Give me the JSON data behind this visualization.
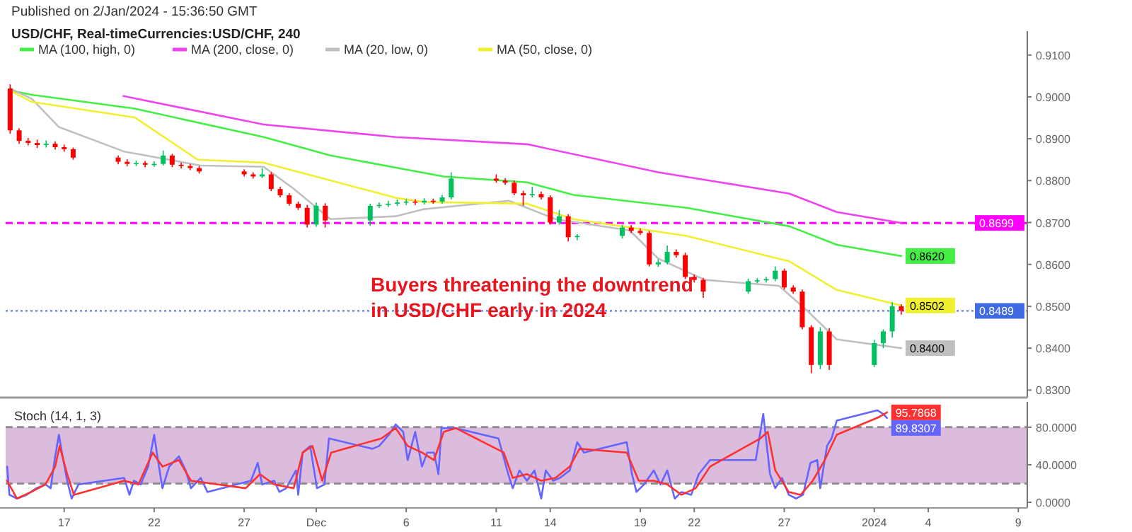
{
  "chart_data": [
    {
      "type": "candlestick",
      "title": "Published on 2/Jan/2024 - 15:36:50 GMT",
      "subtitle": "USD/CHF, Real-timeCurrencies:USD/CHF, 240",
      "annotations": [
        "Buyers threatening the downtrend\nin USD/CHF early in 2024"
      ],
      "x": [
        "2023-11-14T00:00",
        "2023-11-14T12:00",
        "2023-11-15T00:00",
        "2023-11-15T12:00",
        "2023-11-16T00:00",
        "2023-11-16T12:00",
        "2023-11-17T00:00",
        "2023-11-17T12:00",
        "2023-11-20T00:00",
        "2023-11-20T12:00",
        "2023-11-21T00:00",
        "2023-11-21T12:00",
        "2023-11-22T00:00",
        "2023-11-22T12:00",
        "2023-11-23T00:00",
        "2023-11-23T12:00",
        "2023-11-24T00:00",
        "2023-11-24T12:00",
        "2023-11-27T00:00",
        "2023-11-27T12:00",
        "2023-11-28T00:00",
        "2023-11-28T12:00",
        "2023-11-29T00:00",
        "2023-11-29T12:00",
        "2023-11-30T00:00",
        "2023-11-30T12:00",
        "2023-12-01T00:00",
        "2023-12-01T12:00",
        "2023-12-04T00:00",
        "2023-12-04T12:00",
        "2023-12-05T00:00",
        "2023-12-05T12:00",
        "2023-12-06T00:00",
        "2023-12-06T12:00",
        "2023-12-07T00:00",
        "2023-12-07T12:00",
        "2023-12-08T00:00",
        "2023-12-08T12:00",
        "2023-12-11T00:00",
        "2023-12-11T12:00",
        "2023-12-12T00:00",
        "2023-12-12T12:00",
        "2023-12-13T00:00",
        "2023-12-13T12:00",
        "2023-12-14T00:00",
        "2023-12-14T12:00",
        "2023-12-15T00:00",
        "2023-12-15T12:00",
        "2023-12-18T00:00",
        "2023-12-18T12:00",
        "2023-12-19T00:00",
        "2023-12-19T12:00",
        "2023-12-20T00:00",
        "2023-12-20T12:00",
        "2023-12-21T00:00",
        "2023-12-21T12:00",
        "2023-12-22T00:00",
        "2023-12-22T12:00",
        "2023-12-25T00:00",
        "2023-12-25T12:00",
        "2023-12-26T00:00",
        "2023-12-26T12:00",
        "2023-12-27T00:00",
        "2023-12-27T12:00",
        "2023-12-28T00:00",
        "2023-12-28T12:00",
        "2023-12-29T00:00",
        "2023-12-29T12:00",
        "2024-01-01T00:00",
        "2024-01-01T12:00",
        "2024-01-02T00:00",
        "2024-01-02T12:00"
      ],
      "ohlc": [
        [
          0.902,
          0.903,
          0.8912,
          0.892
        ],
        [
          0.892,
          0.8925,
          0.8888,
          0.8895
        ],
        [
          0.8895,
          0.8902,
          0.8884,
          0.889
        ],
        [
          0.889,
          0.8898,
          0.8878,
          0.8885
        ],
        [
          0.8885,
          0.8896,
          0.8879,
          0.8888
        ],
        [
          0.8888,
          0.8894,
          0.8874,
          0.888
        ],
        [
          0.888,
          0.8886,
          0.8869,
          0.8875
        ],
        [
          0.8875,
          0.8879,
          0.885,
          0.8855
        ],
        [
          0.8855,
          0.886,
          0.8839,
          0.8845
        ],
        [
          0.8845,
          0.8851,
          0.8834,
          0.884
        ],
        [
          0.884,
          0.8848,
          0.8835,
          0.8842
        ],
        [
          0.8842,
          0.8847,
          0.8832,
          0.8838
        ],
        [
          0.8838,
          0.8846,
          0.8833,
          0.884
        ],
        [
          0.884,
          0.8872,
          0.8836,
          0.886
        ],
        [
          0.886,
          0.8864,
          0.8832,
          0.8838
        ],
        [
          0.8838,
          0.8843,
          0.8829,
          0.8835
        ],
        [
          0.8835,
          0.884,
          0.8825,
          0.883
        ],
        [
          0.883,
          0.8835,
          0.8817,
          0.8822
        ],
        [
          0.8822,
          0.8827,
          0.881,
          0.8815
        ],
        [
          0.8815,
          0.882,
          0.8805,
          0.881
        ],
        [
          0.881,
          0.883,
          0.8806,
          0.8815
        ],
        [
          0.8815,
          0.882,
          0.8775,
          0.878
        ],
        [
          0.878,
          0.8786,
          0.876,
          0.8765
        ],
        [
          0.8765,
          0.877,
          0.874,
          0.8745
        ],
        [
          0.8745,
          0.875,
          0.873,
          0.8735
        ],
        [
          0.8735,
          0.8742,
          0.8688,
          0.8695
        ],
        [
          0.8695,
          0.8748,
          0.869,
          0.874
        ],
        [
          0.874,
          0.8746,
          0.8688,
          0.8705
        ],
        [
          0.8705,
          0.8745,
          0.8692,
          0.874
        ],
        [
          0.874,
          0.8748,
          0.8735,
          0.8742
        ],
        [
          0.8742,
          0.8752,
          0.8737,
          0.8745
        ],
        [
          0.8745,
          0.8755,
          0.874,
          0.8748
        ],
        [
          0.8748,
          0.8756,
          0.8742,
          0.875
        ],
        [
          0.875,
          0.8756,
          0.8742,
          0.8748
        ],
        [
          0.8748,
          0.8758,
          0.8743,
          0.8752
        ],
        [
          0.8752,
          0.8757,
          0.8745,
          0.875
        ],
        [
          0.875,
          0.8766,
          0.8745,
          0.876
        ],
        [
          0.876,
          0.882,
          0.8755,
          0.8805
        ],
        [
          0.8805,
          0.8815,
          0.8795,
          0.88
        ],
        [
          0.88,
          0.8806,
          0.879,
          0.8795
        ],
        [
          0.8795,
          0.88,
          0.8765,
          0.877
        ],
        [
          0.877,
          0.8776,
          0.874,
          0.8765
        ],
        [
          0.8765,
          0.8785,
          0.876,
          0.8768
        ],
        [
          0.8768,
          0.8774,
          0.8755,
          0.876
        ],
        [
          0.876,
          0.8765,
          0.8695,
          0.87
        ],
        [
          0.87,
          0.873,
          0.8695,
          0.8715
        ],
        [
          0.8715,
          0.872,
          0.8655,
          0.8665
        ],
        [
          0.8665,
          0.8672,
          0.8658,
          0.8668
        ],
        [
          0.8668,
          0.8695,
          0.8662,
          0.8688
        ],
        [
          0.8688,
          0.8694,
          0.8675,
          0.868
        ],
        [
          0.868,
          0.8686,
          0.867,
          0.8675
        ],
        [
          0.8675,
          0.868,
          0.8595,
          0.86
        ],
        [
          0.86,
          0.8612,
          0.8594,
          0.8605
        ],
        [
          0.8605,
          0.8645,
          0.86,
          0.863
        ],
        [
          0.863,
          0.8636,
          0.8616,
          0.8622
        ],
        [
          0.8622,
          0.8628,
          0.8565,
          0.857
        ],
        [
          0.857,
          0.8576,
          0.8557,
          0.8563
        ],
        [
          0.8563,
          0.8568,
          0.852,
          0.8535
        ],
        [
          0.8535,
          0.8566,
          0.853,
          0.856
        ],
        [
          0.856,
          0.8567,
          0.8555,
          0.8562
        ],
        [
          0.8562,
          0.857,
          0.8557,
          0.8565
        ],
        [
          0.8565,
          0.8595,
          0.856,
          0.8585
        ],
        [
          0.8585,
          0.859,
          0.854,
          0.8545
        ],
        [
          0.8545,
          0.855,
          0.853,
          0.8535
        ],
        [
          0.8535,
          0.854,
          0.8445,
          0.845
        ],
        [
          0.845,
          0.8455,
          0.834,
          0.836
        ],
        [
          0.836,
          0.845,
          0.835,
          0.844
        ],
        [
          0.844,
          0.8448,
          0.8348,
          0.836
        ],
        [
          0.836,
          0.842,
          0.8355,
          0.8412
        ],
        [
          0.8412,
          0.8445,
          0.84,
          0.844
        ],
        [
          0.844,
          0.851,
          0.8425,
          0.85
        ],
        [
          0.85,
          0.8505,
          0.848,
          0.8489
        ]
      ],
      "series": [
        {
          "name": "MA (100, high, 0)",
          "type": "line",
          "color": "#44ee44",
          "x": [
            "2023-11-14T00:00",
            "2023-11-15T05:00",
            "2023-11-20T22:00",
            "2023-11-28T02:00",
            "2023-12-01T19:00",
            "2023-12-08T02:00",
            "2023-12-12T17:00",
            "2023-12-15T07:00",
            "2023-12-21T14:00",
            "2023-12-27T07:00",
            "2023-12-29T22:00",
            "2024-01-02T12:00"
          ],
          "values": [
            0.9015,
            0.9005,
            0.8972,
            0.8904,
            0.886,
            0.881,
            0.8796,
            0.8766,
            0.8735,
            0.8691,
            0.8647,
            0.862
          ],
          "value_labels": [
            null,
            null,
            null,
            null,
            null,
            null,
            null,
            null,
            null,
            null,
            null,
            "0.8620"
          ]
        },
        {
          "name": "MA (200, close, 0)",
          "type": "line",
          "color": "#ee44ee",
          "x": [
            "2023-11-20T07:00",
            "2023-11-28T02:00",
            "2023-12-05T10:00",
            "2023-12-12T17:00",
            "2023-12-20T00:00",
            "2023-12-27T07:00",
            "2023-12-29T22:00",
            "2024-01-02T12:00"
          ],
          "values": [
            0.9002,
            0.8934,
            0.8904,
            0.8887,
            0.882,
            0.8769,
            0.8725,
            0.8699
          ]
        },
        {
          "name": "MA (20, low, 0)",
          "type": "line",
          "color": "#c0c0c0",
          "x": [
            "2023-11-14T00:00",
            "2023-11-15T05:00",
            "2023-11-16T17:00",
            "2023-11-20T07:00",
            "2023-11-24T14:00",
            "2023-11-28T02:00",
            "2023-11-29T17:00",
            "2023-12-01T19:00",
            "2023-12-05T10:00",
            "2023-12-07T00:00",
            "2023-12-11T17:00",
            "2023-12-14T07:00",
            "2023-12-18T10:00",
            "2023-12-20T00:00",
            "2023-12-22T14:00",
            "2023-12-26T17:00",
            "2023-12-28T07:00",
            "2023-12-29T22:00",
            "2024-01-02T12:00"
          ],
          "values": [
            0.902,
            0.8995,
            0.8928,
            0.887,
            0.8836,
            0.8833,
            0.8782,
            0.8708,
            0.8715,
            0.8732,
            0.8752,
            0.8708,
            0.8681,
            0.8614,
            0.8563,
            0.8549,
            0.8489,
            0.8421,
            0.84
          ],
          "value_labels": [
            null,
            null,
            null,
            null,
            null,
            null,
            null,
            null,
            null,
            null,
            null,
            null,
            null,
            null,
            null,
            null,
            null,
            null,
            "0.8400"
          ]
        },
        {
          "name": "MA (50, close, 0)",
          "type": "line",
          "color": "#f0f030",
          "x": [
            "2023-11-14T00:00",
            "2023-11-15T05:00",
            "2023-11-20T22:00",
            "2023-11-24T10:00",
            "2023-11-28T02:00",
            "2023-12-05T10:00",
            "2023-12-07T00:00",
            "2023-12-12T17:00",
            "2023-12-15T07:00",
            "2023-12-21T14:00",
            "2023-12-27T07:00",
            "2023-12-29T22:00",
            "2024-01-02T12:00"
          ],
          "values": [
            0.9015,
            0.8988,
            0.8951,
            0.885,
            0.8843,
            0.8759,
            0.8749,
            0.8745,
            0.8708,
            0.8668,
            0.8607,
            0.8539,
            0.8502
          ],
          "value_labels": [
            null,
            null,
            null,
            null,
            null,
            null,
            null,
            null,
            null,
            null,
            null,
            null,
            "0.8502"
          ]
        }
      ],
      "ref_lines": [
        {
          "axis": "y",
          "value": 0.8699,
          "label": "0.8699",
          "color": "#ff00ff",
          "line_style": "dashed"
        },
        {
          "axis": "y",
          "value": 0.8489,
          "label": "0.8489",
          "color": "#4169e1",
          "line_style": "dotted"
        }
      ],
      "xlim": [
        "2023-11-13T18:00",
        "2024-01-09T12:00"
      ],
      "ylim": [
        0.8282,
        0.9157
      ],
      "yticks": [
        {
          "value": 0.83,
          "label": "0.8300"
        },
        {
          "value": 0.84,
          "label": "0.8400"
        },
        {
          "value": 0.85,
          "label": "0.8500"
        },
        {
          "value": 0.86,
          "label": "0.8600"
        },
        {
          "value": 0.87,
          "label": "0.8700"
        },
        {
          "value": 0.88,
          "label": "0.8800"
        },
        {
          "value": 0.89,
          "label": "0.8900"
        },
        {
          "value": 0.9,
          "label": "0.9000"
        },
        {
          "value": 0.91,
          "label": "0.9100"
        }
      ],
      "tick_labels": "y",
      "legend": "top left"
    },
    {
      "type": "line",
      "title": "Stoch (14, 1, 3)",
      "series": [
        {
          "color": "#6464ff",
          "x": [
            "2023-11-13T20:00",
            "2023-11-13T23:00",
            "2023-11-14T09:00",
            "2023-11-14T22:00",
            "2023-11-15T11:00",
            "2023-11-15T23:00",
            "2023-11-16T06:00",
            "2023-11-16T12:00",
            "2023-11-16T17:00",
            "2023-11-16T21:00",
            "2023-11-17T04:00",
            "2023-11-17T10:00",
            "2023-11-17T19:00",
            "2023-11-20T08:00",
            "2023-11-20T15:00",
            "2023-11-20T21:00",
            "2023-11-21T06:00",
            "2023-11-21T16:00",
            "2023-11-22T00:00",
            "2023-11-22T05:00",
            "2023-11-22T11:00",
            "2023-11-22T20:00",
            "2023-11-23T09:00",
            "2023-11-23T18:00",
            "2023-11-24T01:00",
            "2023-11-24T14:00",
            "2023-11-24T23:00",
            "2023-11-27T09:00",
            "2023-11-27T18:00",
            "2023-11-28T00:00",
            "2023-11-28T16:00",
            "2023-11-28T23:00",
            "2023-11-29T08:00",
            "2023-11-29T21:00",
            "2023-11-30T00:00",
            "2023-11-30T06:00",
            "2023-11-30T16:00",
            "2023-12-01T01:00",
            "2023-12-01T11:00",
            "2023-12-01T17:00",
            "2023-12-04T03:00",
            "2023-12-04T12:00",
            "2023-12-05T01:00",
            "2023-12-05T10:00",
            "2023-12-05T20:00",
            "2023-12-06T02:00",
            "2023-12-06T12:00",
            "2023-12-06T21:00",
            "2023-12-07T04:00",
            "2023-12-07T13:00",
            "2023-12-07T19:00",
            "2023-12-07T23:00",
            "2023-12-08T08:00",
            "2023-12-08T18:00",
            "2023-12-11T03:00",
            "2023-12-11T16:00",
            "2023-12-11T22:00",
            "2023-12-12T07:00",
            "2023-12-12T17:00",
            "2023-12-13T03:00",
            "2023-12-13T12:00",
            "2023-12-13T18:00",
            "2023-12-14T04:00",
            "2023-12-14T13:00",
            "2023-12-15T02:00",
            "2023-12-15T12:00",
            "2023-12-15T21:00",
            "2023-12-18T06:00",
            "2023-12-18T13:00",
            "2023-12-18T19:00",
            "2023-12-19T05:00",
            "2023-12-19T18:00",
            "2023-12-20T03:00",
            "2023-12-20T12:00",
            "2023-12-20T22:00",
            "2023-12-21T07:00",
            "2023-12-21T20:00",
            "2023-12-22T06:00",
            "2023-12-22T21:00",
            "2023-12-25T10:00",
            "2023-12-25T20:00",
            "2023-12-26T05:00",
            "2023-12-26T12:00",
            "2023-12-26T21:00",
            "2023-12-27T06:00",
            "2023-12-27T16:00",
            "2023-12-28T01:00",
            "2023-12-28T11:00",
            "2023-12-28T20:00",
            "2023-12-29T00:00",
            "2023-12-29T09:00",
            "2023-12-29T15:00",
            "2023-12-29T22:00",
            "2024-01-01T04:00",
            "2024-01-01T12:00",
            "2024-01-01T17:00"
          ],
          "values": [
            38,
            8,
            4,
            8,
            15,
            19,
            15,
            49,
            72,
            53,
            23,
            4,
            19,
            26,
            8,
            23,
            19,
            38,
            72,
            45,
            15,
            38,
            49,
            34,
            15,
            26,
            11,
            23,
            42,
            19,
            23,
            11,
            15,
            34,
            8,
            53,
            60,
            15,
            19,
            68,
            57,
            60,
            72,
            83,
            75,
            45,
            75,
            38,
            53,
            53,
            30,
            79,
            79,
            79,
            68,
            30,
            15,
            34,
            23,
            34,
            4,
            34,
            23,
            26,
            34,
            64,
            53,
            64,
            30,
            11,
            19,
            34,
            19,
            34,
            4,
            11,
            8,
            30,
            45,
            45,
            94,
            30,
            15,
            26,
            8,
            4,
            8,
            42,
            45,
            15,
            60,
            68,
            87,
            98,
            94,
            89.8307
          ],
          "value_labels": [
            null,
            null,
            null,
            null,
            null,
            null,
            null,
            null,
            null,
            null,
            null,
            null,
            null,
            null,
            null,
            null,
            null,
            null,
            null,
            null,
            null,
            null,
            null,
            null,
            null,
            null,
            null,
            null,
            null,
            null,
            null,
            null,
            null,
            null,
            null,
            null,
            null,
            null,
            null,
            null,
            null,
            null,
            null,
            null,
            null,
            null,
            null,
            null,
            null,
            null,
            null,
            null,
            null,
            null,
            null,
            null,
            null,
            null,
            null,
            null,
            null,
            null,
            null,
            null,
            null,
            null,
            null,
            null,
            null,
            null,
            null,
            null,
            null,
            null,
            null,
            null,
            null,
            null,
            null,
            null,
            null,
            null,
            null,
            null,
            null,
            null,
            null,
            null,
            null,
            null,
            null,
            null,
            null,
            null,
            null,
            "89.8307"
          ]
        },
        {
          "color": "#ff3030",
          "x": [
            "2023-11-13T20:00",
            "2023-11-14T09:00",
            "2023-11-15T04:00",
            "2023-11-15T23:00",
            "2023-11-16T12:00",
            "2023-11-16T18:00",
            "2023-11-17T04:00",
            "2023-11-17T13:00",
            "2023-11-20T08:00",
            "2023-11-21T03:00",
            "2023-11-21T22:00",
            "2023-11-22T11:00",
            "2023-11-23T09:00",
            "2023-11-24T01:00",
            "2023-11-27T02:00",
            "2023-11-27T21:00",
            "2023-11-28T16:00",
            "2023-11-29T18:00",
            "2023-11-30T06:00",
            "2023-11-30T19:00",
            "2023-12-01T08:00",
            "2023-12-01T20:00",
            "2023-12-04T15:00",
            "2023-12-05T10:00",
            "2023-12-06T02:00",
            "2023-12-06T21:00",
            "2023-12-07T13:00",
            "2023-12-08T02:00",
            "2023-12-08T18:00",
            "2023-12-11T10:00",
            "2023-12-11T22:00",
            "2023-12-12T17:00",
            "2023-12-13T12:00",
            "2023-12-14T07:00",
            "2023-12-15T02:00",
            "2023-12-15T15:00",
            "2023-12-18T06:00",
            "2023-12-18T22:00",
            "2023-12-19T18:00",
            "2023-12-20T12:00",
            "2023-12-21T07:00",
            "2023-12-22T02:00",
            "2023-12-22T21:00",
            "2023-12-25T16:00",
            "2023-12-26T02:00",
            "2023-12-26T12:00",
            "2023-12-27T06:00",
            "2023-12-27T22:00",
            "2023-12-28T14:00",
            "2023-12-29T06:00",
            "2023-12-29T22:00",
            "2024-01-01T07:00",
            "2024-01-01T17:00"
          ],
          "values": [
            23,
            4,
            11,
            19,
            38,
            60,
            30,
            8,
            23,
            19,
            53,
            38,
            45,
            23,
            15,
            30,
            19,
            15,
            53,
            60,
            23,
            53,
            68,
            79,
            60,
            53,
            45,
            75,
            79,
            53,
            26,
            30,
            23,
            26,
            38,
            57,
            53,
            23,
            23,
            19,
            8,
            15,
            38,
            68,
            75,
            34,
            11,
            8,
            23,
            45,
            72,
            91,
            95.7868
          ],
          "value_labels": [
            null,
            null,
            null,
            null,
            null,
            null,
            null,
            null,
            null,
            null,
            null,
            null,
            null,
            null,
            null,
            null,
            null,
            null,
            null,
            null,
            null,
            null,
            null,
            null,
            null,
            null,
            null,
            null,
            null,
            null,
            null,
            null,
            null,
            null,
            null,
            null,
            null,
            null,
            null,
            null,
            null,
            null,
            null,
            null,
            null,
            null,
            null,
            null,
            null,
            null,
            null,
            null,
            "95.7868"
          ]
        }
      ],
      "bands": [
        {
          "axis": "y",
          "from": 20,
          "to": 80,
          "color": "#dcbcdc"
        }
      ],
      "ref_lines": [
        {
          "axis": "y",
          "value": 20,
          "color": "#909090",
          "line_style": "dashed"
        },
        {
          "axis": "y",
          "value": 80,
          "color": "#909090",
          "line_style": "dashed"
        }
      ],
      "xlim": [
        "2023-11-13T18:00",
        "2024-01-09T12:00"
      ],
      "xticks": [
        {
          "value": "2023-11-17",
          "label": "17"
        },
        {
          "value": "2023-11-22",
          "label": "22"
        },
        {
          "value": "2023-11-27",
          "label": "27"
        },
        {
          "value": "2023-12-01",
          "label": "Dec"
        },
        {
          "value": "2023-12-06",
          "label": "6"
        },
        {
          "value": "2023-12-11",
          "label": "11"
        },
        {
          "value": "2023-12-14",
          "label": "14"
        },
        {
          "value": "2023-12-19",
          "label": "19"
        },
        {
          "value": "2023-12-22",
          "label": "22"
        },
        {
          "value": "2023-12-27",
          "label": "27"
        },
        {
          "value": "2024-01-01",
          "label": "2024"
        },
        {
          "value": "2024-01-04",
          "label": "4"
        },
        {
          "value": "2024-01-09",
          "label": "9"
        }
      ],
      "ylim": [
        -6,
        107
      ],
      "yticks": [
        {
          "value": 0,
          "label": "0.0000"
        },
        {
          "value": 40,
          "label": "40.0000"
        },
        {
          "value": 80,
          "label": "80.0000"
        }
      ]
    }
  ]
}
